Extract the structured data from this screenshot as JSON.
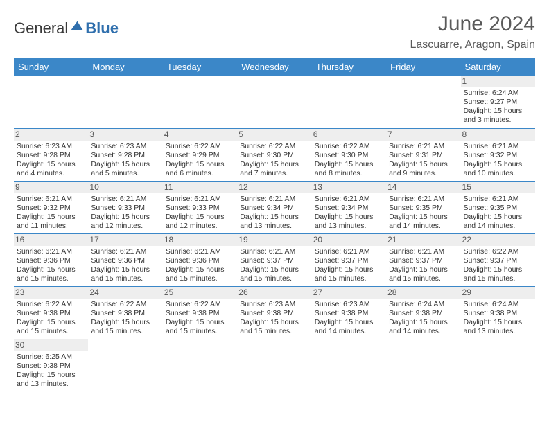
{
  "logo": {
    "general": "Genera",
    "l": "l",
    "blue": "Blue"
  },
  "header": {
    "month_title": "June 2024",
    "location": "Lascuarre, Aragon, Spain"
  },
  "colors": {
    "header_bg": "#3b87c8",
    "header_text": "#ffffff",
    "daynum_bg": "#eeeeee",
    "border": "#3b87c8",
    "body_text": "#333333",
    "title_text": "#5a5a5a"
  },
  "weekdays": [
    "Sunday",
    "Monday",
    "Tuesday",
    "Wednesday",
    "Thursday",
    "Friday",
    "Saturday"
  ],
  "days": [
    {
      "n": 1,
      "sr": "6:24 AM",
      "ss": "9:27 PM",
      "dl": "15 hours and 3 minutes."
    },
    {
      "n": 2,
      "sr": "6:23 AM",
      "ss": "9:28 PM",
      "dl": "15 hours and 4 minutes."
    },
    {
      "n": 3,
      "sr": "6:23 AM",
      "ss": "9:28 PM",
      "dl": "15 hours and 5 minutes."
    },
    {
      "n": 4,
      "sr": "6:22 AM",
      "ss": "9:29 PM",
      "dl": "15 hours and 6 minutes."
    },
    {
      "n": 5,
      "sr": "6:22 AM",
      "ss": "9:30 PM",
      "dl": "15 hours and 7 minutes."
    },
    {
      "n": 6,
      "sr": "6:22 AM",
      "ss": "9:30 PM",
      "dl": "15 hours and 8 minutes."
    },
    {
      "n": 7,
      "sr": "6:21 AM",
      "ss": "9:31 PM",
      "dl": "15 hours and 9 minutes."
    },
    {
      "n": 8,
      "sr": "6:21 AM",
      "ss": "9:32 PM",
      "dl": "15 hours and 10 minutes."
    },
    {
      "n": 9,
      "sr": "6:21 AM",
      "ss": "9:32 PM",
      "dl": "15 hours and 11 minutes."
    },
    {
      "n": 10,
      "sr": "6:21 AM",
      "ss": "9:33 PM",
      "dl": "15 hours and 12 minutes."
    },
    {
      "n": 11,
      "sr": "6:21 AM",
      "ss": "9:33 PM",
      "dl": "15 hours and 12 minutes."
    },
    {
      "n": 12,
      "sr": "6:21 AM",
      "ss": "9:34 PM",
      "dl": "15 hours and 13 minutes."
    },
    {
      "n": 13,
      "sr": "6:21 AM",
      "ss": "9:34 PM",
      "dl": "15 hours and 13 minutes."
    },
    {
      "n": 14,
      "sr": "6:21 AM",
      "ss": "9:35 PM",
      "dl": "15 hours and 14 minutes."
    },
    {
      "n": 15,
      "sr": "6:21 AM",
      "ss": "9:35 PM",
      "dl": "15 hours and 14 minutes."
    },
    {
      "n": 16,
      "sr": "6:21 AM",
      "ss": "9:36 PM",
      "dl": "15 hours and 15 minutes."
    },
    {
      "n": 17,
      "sr": "6:21 AM",
      "ss": "9:36 PM",
      "dl": "15 hours and 15 minutes."
    },
    {
      "n": 18,
      "sr": "6:21 AM",
      "ss": "9:36 PM",
      "dl": "15 hours and 15 minutes."
    },
    {
      "n": 19,
      "sr": "6:21 AM",
      "ss": "9:37 PM",
      "dl": "15 hours and 15 minutes."
    },
    {
      "n": 20,
      "sr": "6:21 AM",
      "ss": "9:37 PM",
      "dl": "15 hours and 15 minutes."
    },
    {
      "n": 21,
      "sr": "6:21 AM",
      "ss": "9:37 PM",
      "dl": "15 hours and 15 minutes."
    },
    {
      "n": 22,
      "sr": "6:22 AM",
      "ss": "9:37 PM",
      "dl": "15 hours and 15 minutes."
    },
    {
      "n": 23,
      "sr": "6:22 AM",
      "ss": "9:38 PM",
      "dl": "15 hours and 15 minutes."
    },
    {
      "n": 24,
      "sr": "6:22 AM",
      "ss": "9:38 PM",
      "dl": "15 hours and 15 minutes."
    },
    {
      "n": 25,
      "sr": "6:22 AM",
      "ss": "9:38 PM",
      "dl": "15 hours and 15 minutes."
    },
    {
      "n": 26,
      "sr": "6:23 AM",
      "ss": "9:38 PM",
      "dl": "15 hours and 15 minutes."
    },
    {
      "n": 27,
      "sr": "6:23 AM",
      "ss": "9:38 PM",
      "dl": "15 hours and 14 minutes."
    },
    {
      "n": 28,
      "sr": "6:24 AM",
      "ss": "9:38 PM",
      "dl": "15 hours and 14 minutes."
    },
    {
      "n": 29,
      "sr": "6:24 AM",
      "ss": "9:38 PM",
      "dl": "15 hours and 13 minutes."
    },
    {
      "n": 30,
      "sr": "6:25 AM",
      "ss": "9:38 PM",
      "dl": "15 hours and 13 minutes."
    }
  ],
  "labels": {
    "sunrise": "Sunrise: ",
    "sunset": "Sunset: ",
    "daylight": "Daylight: "
  },
  "layout": {
    "first_weekday_index": 6,
    "rows": 6,
    "cols": 7
  }
}
